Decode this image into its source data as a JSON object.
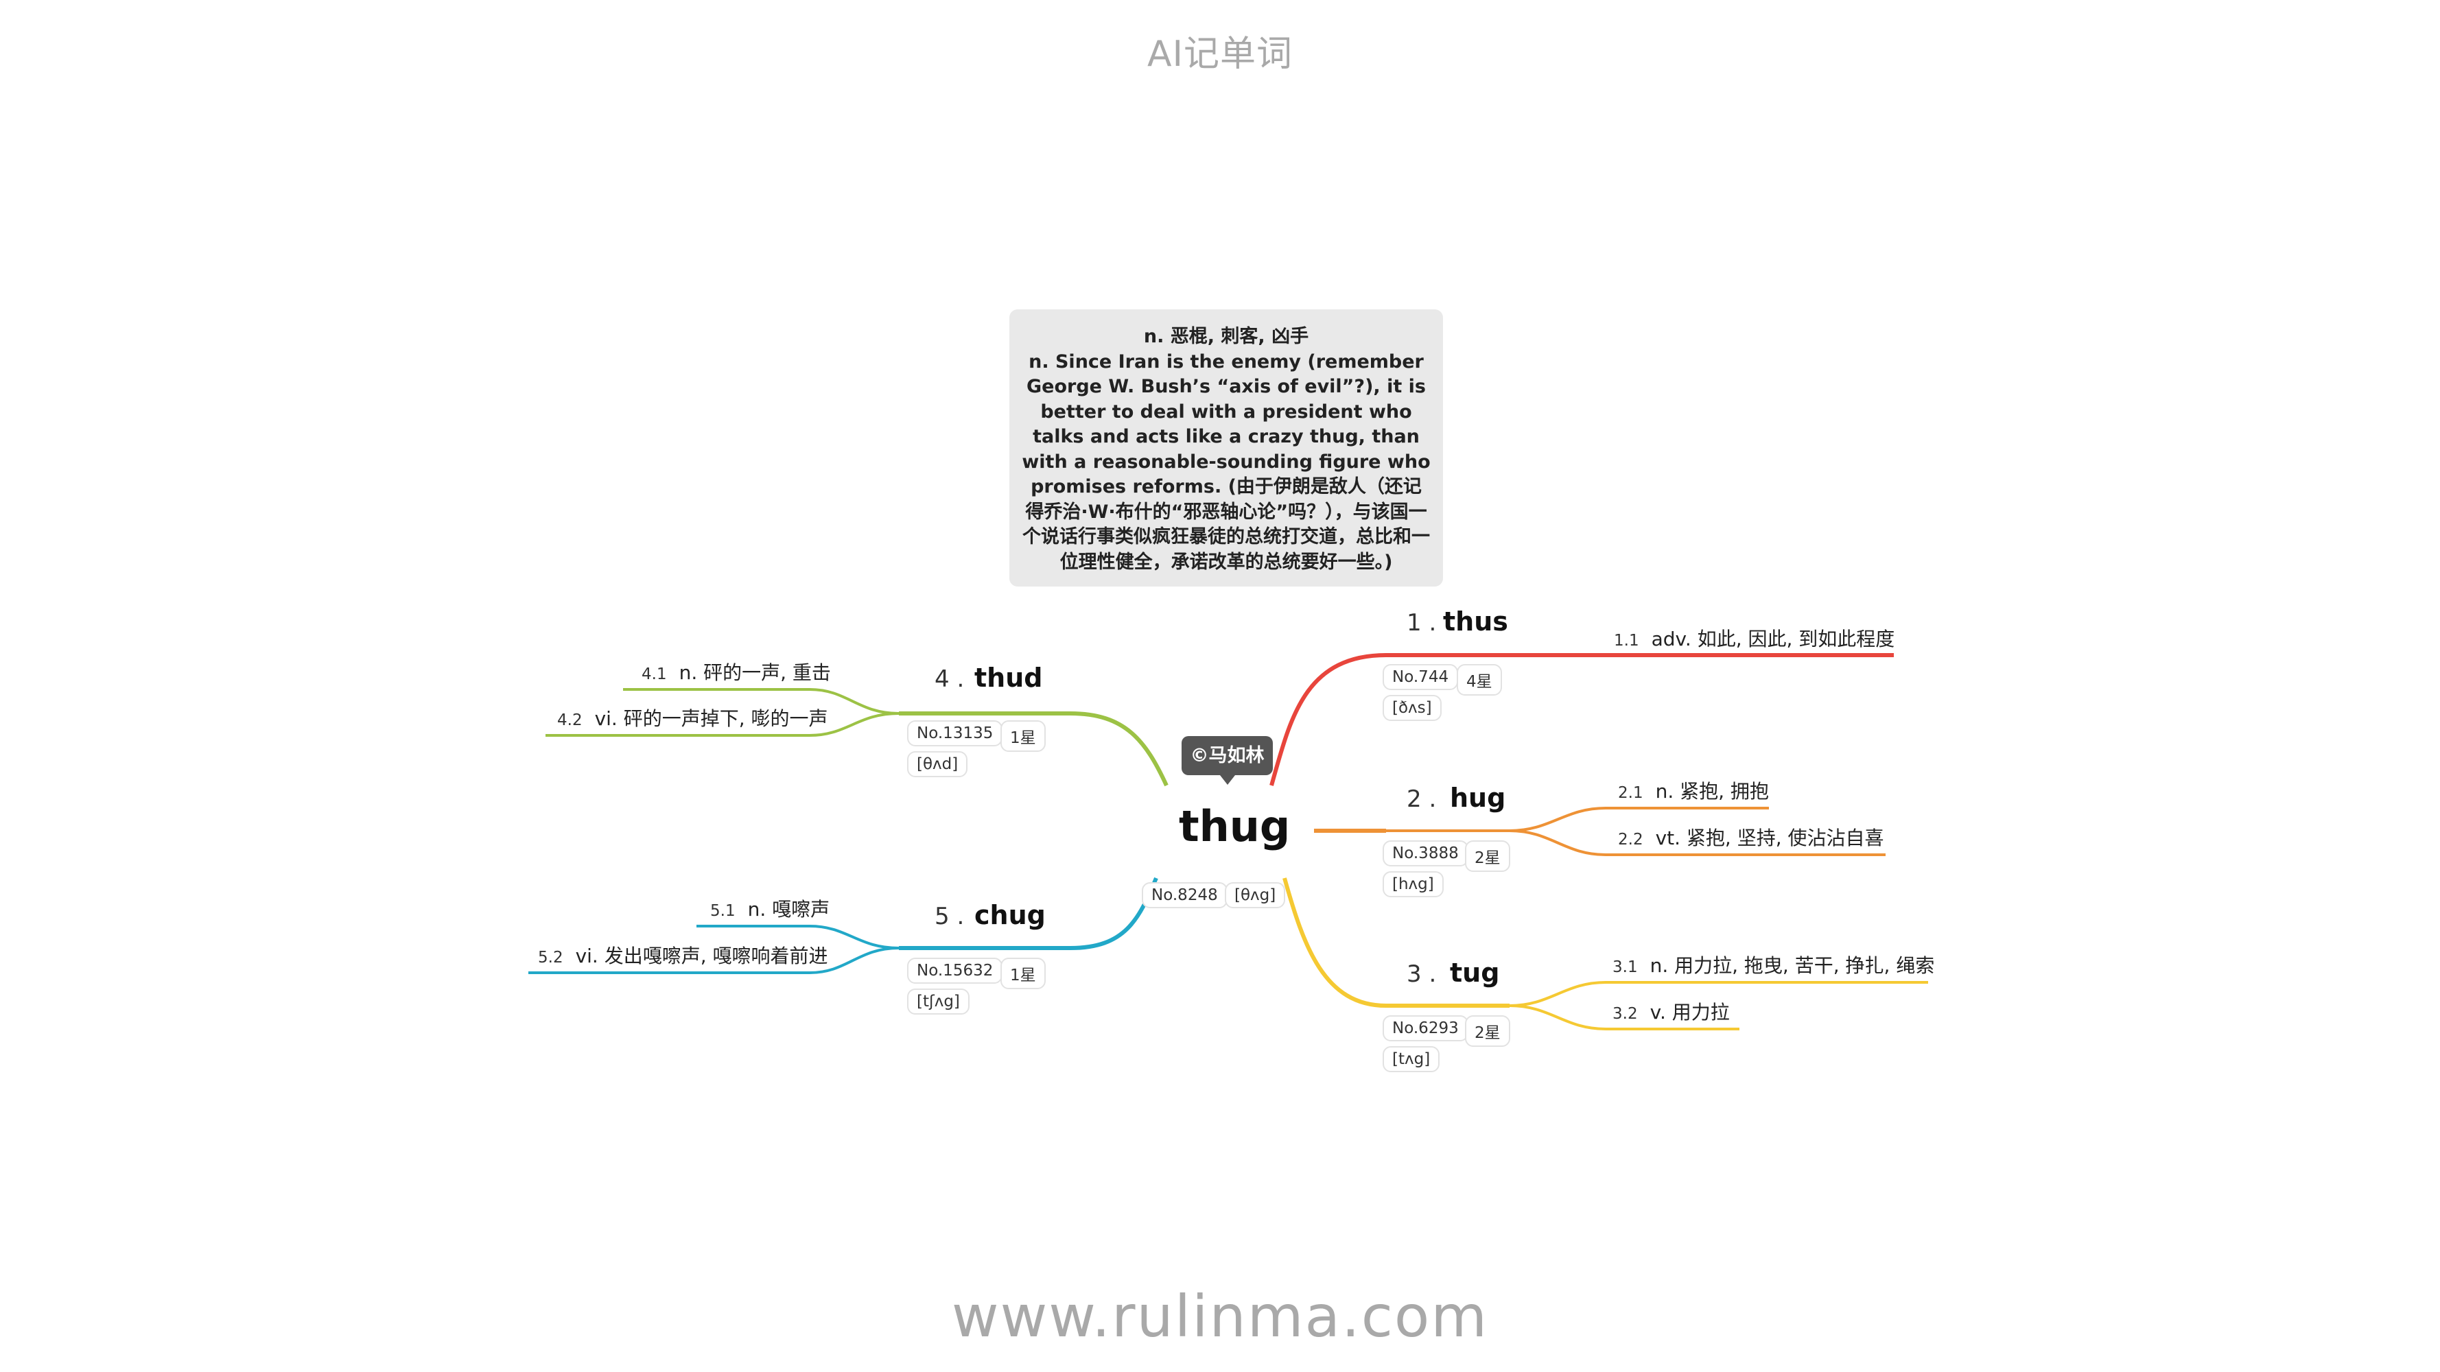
{
  "header": {
    "title": "AI记单词"
  },
  "footer": {
    "url": "www.rulinma.com"
  },
  "definition_box": {
    "line1": "n. 恶棍, 刺客, 凶手",
    "line2": "n. Since Iran is the enemy (remember George W. Bush’s “axis of evil”?), it is better to deal with a president who talks and acts like a crazy thug, than with a reasonable-sounding figure who promises reforms. (由于伊朗是敌人（还记得乔治·W·布什的“邪恶轴心论”吗？），与该国一个说话行事类似疯狂暴徒的总统打交道，总比和一位理性健全，承诺改革的总统要好一些。)"
  },
  "center": {
    "word": "thug",
    "number": "No.8248",
    "phonetic": "[θʌg]",
    "author": "©马如林"
  },
  "branches": [
    {
      "num": "1 .",
      "word": "thus",
      "number": "No.744",
      "stars": "4星",
      "phonetic": "[ðʌs]",
      "color": "#e8453c",
      "senses": [
        {
          "idx": "1.1",
          "text": "adv. 如此, 因此, 到如此程度"
        }
      ]
    },
    {
      "num": "2 .",
      "word": "hug",
      "number": "No.3888",
      "stars": "2星",
      "phonetic": "[hʌg]",
      "color": "#ee9236",
      "senses": [
        {
          "idx": "2.1",
          "text": "n. 紧抱, 拥抱"
        },
        {
          "idx": "2.2",
          "text": "vt. 紧抱, 坚持, 使沾沾自喜"
        }
      ]
    },
    {
      "num": "3 .",
      "word": "tug",
      "number": "No.6293",
      "stars": "2星",
      "phonetic": "[tʌg]",
      "color": "#f5c933",
      "senses": [
        {
          "idx": "3.1",
          "text": "n. 用力拉, 拖曳, 苦干, 挣扎, 绳索"
        },
        {
          "idx": "3.2",
          "text": "v. 用力拉"
        }
      ]
    },
    {
      "num": "4 .",
      "word": "thud",
      "number": "No.13135",
      "stars": "1星",
      "phonetic": "[θʌd]",
      "color": "#9cc245",
      "senses": [
        {
          "idx": "4.1",
          "text": "n. 砰的一声, 重击"
        },
        {
          "idx": "4.2",
          "text": "vi. 砰的一声掉下, 嘭的一声"
        }
      ]
    },
    {
      "num": "5 .",
      "word": "chug",
      "number": "No.15632",
      "stars": "1星",
      "phonetic": "[tʃʌg]",
      "color": "#22a8c8",
      "senses": [
        {
          "idx": "5.1",
          "text": "n. 嘎嚓声"
        },
        {
          "idx": "5.2",
          "text": "vi. 发出嘎嚓声, 嘎嚓响着前进"
        }
      ]
    }
  ]
}
